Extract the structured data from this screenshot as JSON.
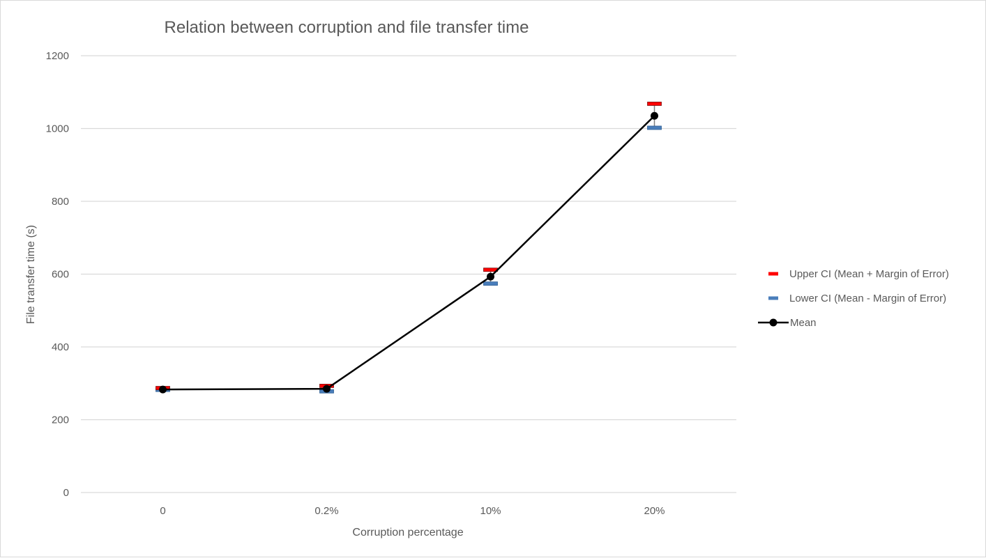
{
  "chart_data": {
    "type": "line",
    "title": "Relation between corruption and file transfer time",
    "xlabel": "Corruption percentage",
    "ylabel": "File transfer time (s)",
    "categories": [
      "0",
      "0.2%",
      "10%",
      "20%"
    ],
    "ylim": [
      0,
      1200
    ],
    "yticks": [
      0,
      200,
      400,
      600,
      800,
      1000,
      1200
    ],
    "grid": true,
    "legend_position": "right",
    "series": [
      {
        "name": "Upper CI (Mean + Margin of Error)",
        "marker": "dash",
        "color": "#ff0000",
        "values": [
          287,
          293,
          612,
          1068
        ]
      },
      {
        "name": "Lower CI (Mean - Margin of Error)",
        "marker": "dash",
        "color": "#4a7ebb",
        "values": [
          282,
          278,
          574,
          1002
        ]
      },
      {
        "name": "Mean",
        "marker": "circle",
        "color": "#000000",
        "line": true,
        "values": [
          283,
          285,
          593,
          1035
        ]
      }
    ]
  }
}
